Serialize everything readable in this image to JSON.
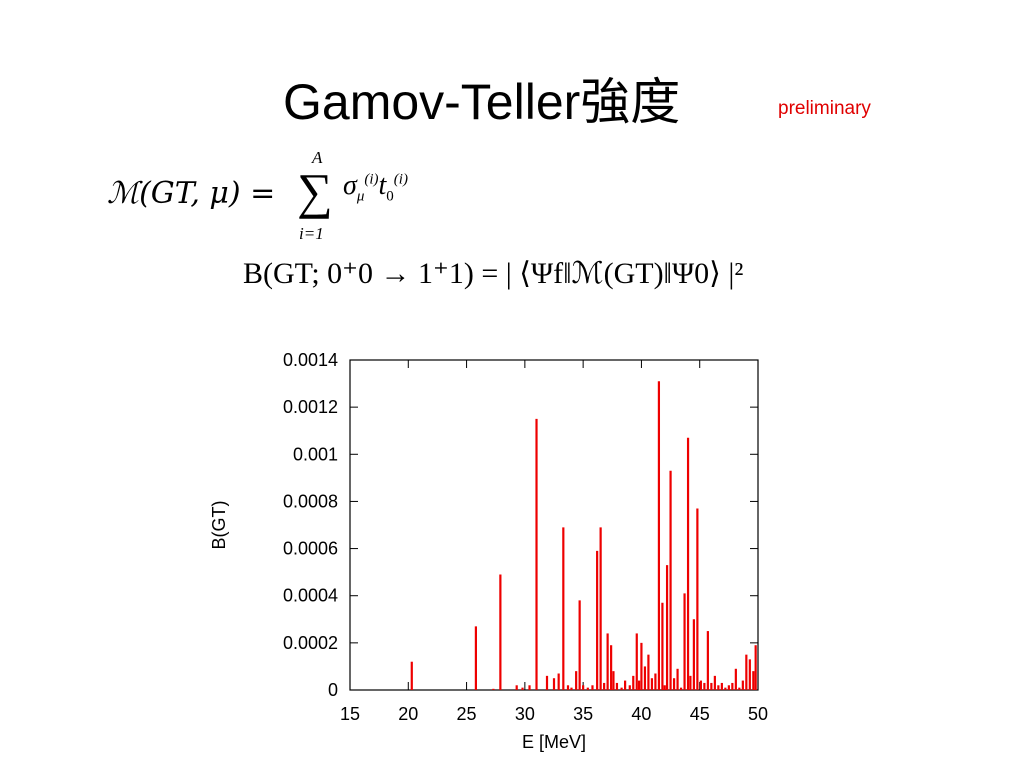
{
  "slide": {
    "title": "Gamov-Teller強度",
    "badge": "preliminary",
    "equation1": {
      "lhs": "ℳ(GT, μ) =",
      "sum_upper": "A",
      "sum_lower": "i=1",
      "term_sigma": "σ",
      "term_sigma_sub": "μ",
      "term_sigma_sup": "(i)",
      "term_t": "t",
      "term_t_sub": "0",
      "term_t_sup": "(i)"
    },
    "equation2": {
      "text": "B(GT; 0⁺0 → 1⁺1) = | ⟨Ψf‖ℳ(GT)‖Ψ0⟩ |²"
    }
  },
  "colors": {
    "title": "#000000",
    "badge": "#e00000",
    "bars": "#ee0000"
  },
  "chart_data": {
    "type": "bar",
    "xlabel": "E [MeV]",
    "ylabel": "B(GT)",
    "xlim": [
      15,
      50
    ],
    "ylim": [
      0,
      0.0014
    ],
    "xticks": [
      "15",
      "20",
      "25",
      "30",
      "35",
      "40",
      "45",
      "50"
    ],
    "yticks": [
      "0",
      "0.0002",
      "0.0004",
      "0.0006",
      "0.0008",
      "0.001",
      "0.0012",
      "0.0014"
    ],
    "grid": false,
    "series": [
      {
        "x": [
          20.3,
          25.8,
          27.3,
          27.9,
          29.3,
          29.8,
          30.4,
          31.0,
          31.9,
          32.5,
          32.9,
          33.3,
          33.7,
          34.0,
          34.4,
          34.7,
          35.0,
          35.4,
          35.8,
          36.2,
          36.5,
          36.8,
          37.1,
          37.4,
          37.6,
          37.9,
          38.3,
          38.6,
          39.0,
          39.3,
          39.6,
          39.8,
          40.0,
          40.3,
          40.6,
          40.9,
          41.2,
          41.5,
          41.8,
          42.0,
          42.2,
          42.5,
          42.8,
          43.1,
          43.4,
          43.7,
          44.0,
          44.2,
          44.5,
          44.8,
          45.1,
          45.4,
          45.7,
          46.0,
          46.3,
          46.6,
          46.9,
          47.2,
          47.5,
          47.8,
          48.1,
          48.4,
          48.7,
          49.0,
          49.3,
          49.6,
          49.8
        ],
        "y": [
          0.00012,
          0.00027,
          5e-06,
          0.00049,
          2e-05,
          1e-05,
          2e-05,
          0.00115,
          6e-05,
          5e-05,
          7e-05,
          0.00069,
          2e-05,
          1e-05,
          8e-05,
          0.00038,
          2e-05,
          1e-05,
          2e-05,
          0.00059,
          0.00069,
          3e-05,
          0.00024,
          0.00019,
          8e-05,
          3e-05,
          1e-05,
          4e-05,
          2e-05,
          6e-05,
          0.00024,
          4e-05,
          0.0002,
          0.0001,
          0.00015,
          5e-05,
          7e-05,
          0.00131,
          0.00037,
          2e-05,
          0.00053,
          0.00093,
          5e-05,
          9e-05,
          1e-05,
          0.00041,
          0.00107,
          6e-05,
          0.0003,
          0.00077,
          4e-05,
          3e-05,
          0.00025,
          3e-05,
          6e-05,
          2e-05,
          3e-05,
          1e-05,
          2e-05,
          3e-05,
          9e-05,
          1e-05,
          4e-05,
          0.00015,
          0.00013,
          8e-05,
          0.00019
        ]
      }
    ]
  }
}
